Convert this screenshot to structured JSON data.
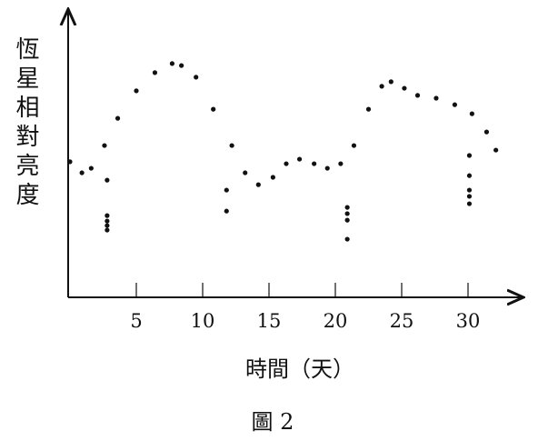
{
  "chart_data": {
    "type": "scatter",
    "y_label": "恆星相對亮度",
    "x_label": "時間（天）",
    "caption": "圖 2",
    "color": "#111111",
    "xlim": [
      0,
      34
    ],
    "ylim": [
      0,
      100
    ],
    "xticks": [
      5,
      10,
      15,
      20,
      25,
      30
    ],
    "x": [
      0,
      0.9,
      1.6,
      2.6,
      2.8,
      2.8,
      2.8,
      2.8,
      2.8,
      3.6,
      5.0,
      6.4,
      7.7,
      8.4,
      9.5,
      10.8,
      11.8,
      11.8,
      12.2,
      13.2,
      14.2,
      15.3,
      16.3,
      17.3,
      18.4,
      19.4,
      20.4,
      20.9,
      20.9,
      20.9,
      20.9,
      21.4,
      22.5,
      23.5,
      24.2,
      25.2,
      26.2,
      27.6,
      29.0,
      30.1,
      30.1,
      30.1,
      30.1,
      30.1,
      30.3,
      31.4,
      32.1
    ],
    "values": [
      47.8,
      43.9,
      45.5,
      53.5,
      41.3,
      28.8,
      26.9,
      25.3,
      23.7,
      63.1,
      72.8,
      79.2,
      82.4,
      81.7,
      77.6,
      66.3,
      37.8,
      30.4,
      53.5,
      43.9,
      39.7,
      42.3,
      47.1,
      48.7,
      47.1,
      45.5,
      47.1,
      31.7,
      29.5,
      27.2,
      20.5,
      53.5,
      66.3,
      74.4,
      76.0,
      73.7,
      71.2,
      70.2,
      67.9,
      50.0,
      42.9,
      37.8,
      35.6,
      33.0,
      64.7,
      58.3,
      51.9
    ]
  }
}
